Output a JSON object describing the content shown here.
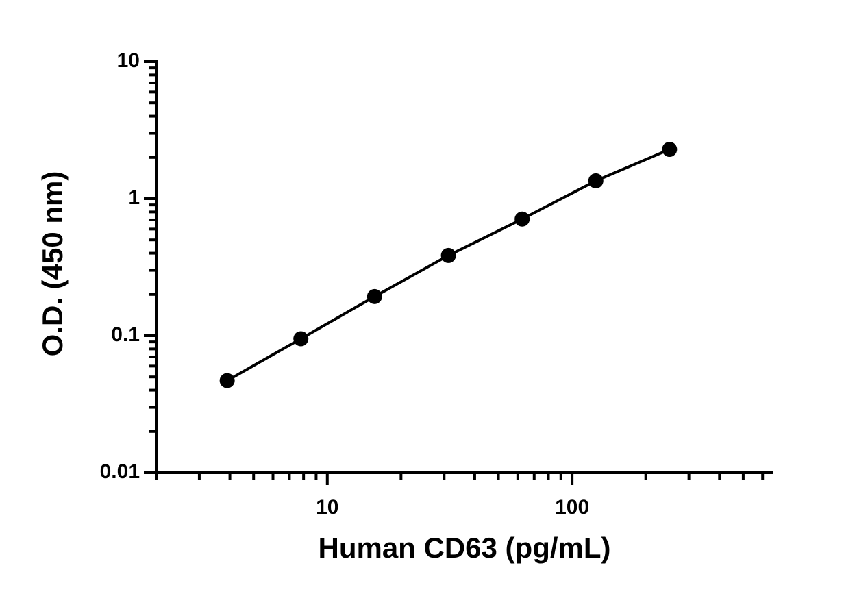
{
  "chart_data": {
    "type": "scatter-line",
    "x_label": "Human CD63 (pg/mL)",
    "y_label": "O.D. (450 nm)",
    "x": [
      3.9,
      7.8,
      15.6,
      31.25,
      62.5,
      125,
      250
    ],
    "series": [
      {
        "name": null,
        "color": "#000000",
        "values": [
          0.047,
          0.095,
          0.193,
          0.385,
          0.71,
          1.35,
          2.29
        ]
      }
    ],
    "x_log": true,
    "y_log": true,
    "xlim": [
      2,
      660
    ],
    "ylim": [
      0.01,
      10
    ],
    "xticks": [
      10,
      100
    ],
    "xminorticks": [
      2,
      3,
      4,
      5,
      6,
      7,
      8,
      9,
      20,
      30,
      40,
      50,
      60,
      70,
      80,
      90,
      200,
      300,
      400,
      500,
      600
    ],
    "yticks": [
      0.01,
      0.1,
      1,
      10
    ],
    "yminorticks": [
      0.02,
      0.03,
      0.04,
      0.05,
      0.06,
      0.07,
      0.08,
      0.09,
      0.2,
      0.3,
      0.4,
      0.5,
      0.6,
      0.7,
      0.8,
      0.9,
      2,
      3,
      4,
      5,
      6,
      7,
      8,
      9
    ],
    "grid": false
  }
}
